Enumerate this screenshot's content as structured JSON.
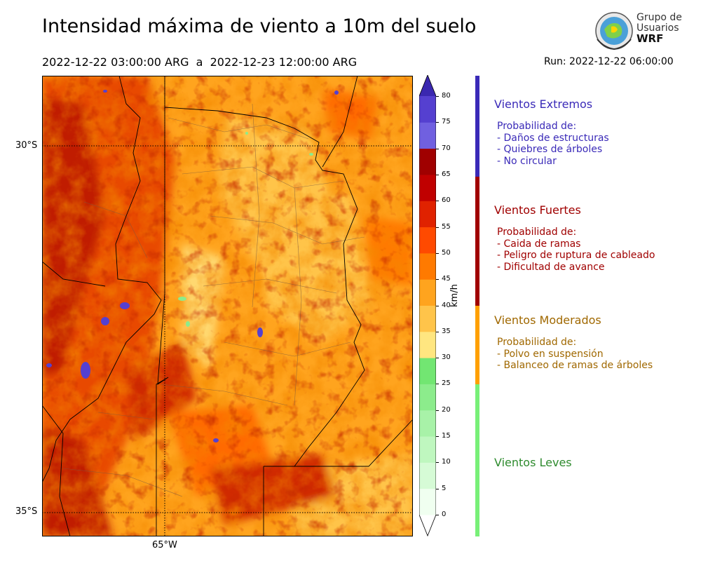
{
  "header": {
    "title": "Intensidad máxima de viento a 10m del suelo",
    "period": "2022-12-22 03:00:00 ARG  a  2022-12-23 12:00:00 ARG",
    "run": "Run: 2022-12-22 06:00:00"
  },
  "logo": {
    "line1": "Grupo de",
    "line2": "Usuarios",
    "line3": "WRF"
  },
  "map": {
    "lat_labels": [
      "30°S",
      "35°S"
    ],
    "lon_labels": [
      "65°W"
    ]
  },
  "colorbar": {
    "unit": "km/h",
    "ticks": [
      "0",
      "5",
      "10",
      "15",
      "20",
      "25",
      "30",
      "35",
      "40",
      "45",
      "50",
      "55",
      "60",
      "65",
      "70",
      "75",
      "80"
    ],
    "colors": [
      "#f0fff0",
      "#d6fbd6",
      "#bff7bf",
      "#a8f2a8",
      "#8cec8c",
      "#72e672",
      "#ffe680",
      "#ffc44a",
      "#ffa41e",
      "#ff7a00",
      "#ff4a00",
      "#e02200",
      "#c00000",
      "#a00000",
      "#7060e0",
      "#5540d0",
      "#3a28b0"
    ]
  },
  "legend": {
    "extreme": {
      "title": "Vientos Extremos",
      "color": "#3a2ab8",
      "lines": [
        "Probabilidad de:",
        "- Daños de estructuras",
        "- Quiebres de árboles",
        "- No circular"
      ]
    },
    "strong": {
      "title": "Vientos Fuertes",
      "color": "#a00000",
      "lines": [
        "Probabilidad de:",
        "- Caida de ramas",
        "- Peligro de ruptura de cableado",
        "- Dificultad de avance"
      ]
    },
    "moderate": {
      "title": "Vientos Moderados",
      "color": "#a06800",
      "bar_color": "#ffa000",
      "lines": [
        "Probabilidad de:",
        "- Polvo en suspensión",
        "- Balanceo de ramas de árboles"
      ]
    },
    "light": {
      "title": "Vientos Leves",
      "color": "#2e8b2e",
      "bar_color": "#78f078"
    }
  }
}
